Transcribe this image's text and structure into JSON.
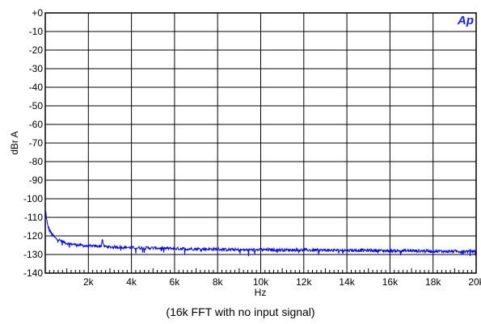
{
  "chart_data": {
    "type": "line",
    "logo": "Ap",
    "caption": "(16k FFT with no input signal)",
    "xlabel": "Hz",
    "ylabel": "dBr A",
    "xlim": [
      0,
      20000
    ],
    "ylim": [
      -140,
      0
    ],
    "x_ticks": [
      2000,
      4000,
      6000,
      8000,
      10000,
      12000,
      14000,
      16000,
      18000,
      20000
    ],
    "x_tick_labels": [
      "2k",
      "4k",
      "6k",
      "8k",
      "10k",
      "12k",
      "14k",
      "16k",
      "18k",
      "20k"
    ],
    "y_ticks": [
      0,
      -10,
      -20,
      -30,
      -40,
      -50,
      -60,
      -70,
      -80,
      -90,
      -100,
      -110,
      -120,
      -130,
      -140
    ],
    "y_tick_labels": [
      "+0",
      "-10",
      "-20",
      "-30",
      "-40",
      "-50",
      "-60",
      "-70",
      "-80",
      "-90",
      "-100",
      "-110",
      "-120",
      "-130",
      "-140"
    ],
    "grid": true,
    "series": [
      {
        "color": "#0000ff",
        "x": [
          20,
          100,
          200,
          300,
          450,
          600,
          800,
          1000,
          1300,
          1600,
          2000,
          2400,
          2600,
          2650,
          2700,
          3000,
          3500,
          4000,
          5000,
          6000,
          7000,
          8000,
          9000,
          10000,
          11000,
          12000,
          13000,
          14000,
          15000,
          16000,
          17000,
          18000,
          19000,
          20000
        ],
        "y": [
          -107,
          -114,
          -117,
          -119,
          -121,
          -122,
          -123,
          -124,
          -124.5,
          -125,
          -125.5,
          -125.5,
          -125.5,
          -121,
          -125.5,
          -126,
          -126,
          -126.3,
          -126.5,
          -126.8,
          -127,
          -127.2,
          -127.5,
          -127.5,
          -127.5,
          -127.6,
          -127.7,
          -127.7,
          -127.8,
          -128,
          -128,
          -128.2,
          -128.3,
          -128.3
        ]
      }
    ]
  }
}
